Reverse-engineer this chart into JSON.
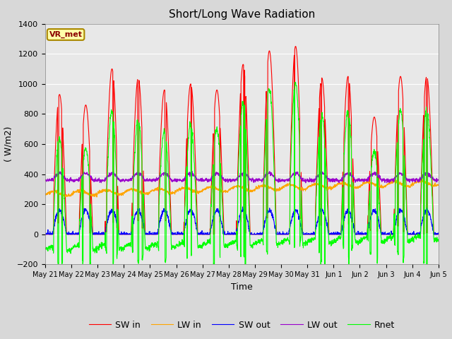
{
  "title": "Short/Long Wave Radiation",
  "ylabel": "( W/m2)",
  "xlabel": "Time",
  "ylim": [
    -200,
    1400
  ],
  "yticks": [
    -200,
    0,
    200,
    400,
    600,
    800,
    1000,
    1200,
    1400
  ],
  "x_tick_labels": [
    "May 21",
    "May 22",
    "May 23",
    "May 24",
    "May 25",
    "May 26",
    "May 27",
    "May 28",
    "May 29",
    "May 30",
    "May 31",
    "Jun 1",
    "Jun 2",
    "Jun 3",
    "Jun 4",
    "Jun 5"
  ],
  "legend_labels": [
    "SW in",
    "LW in",
    "SW out",
    "LW out",
    "Rnet"
  ],
  "legend_colors": [
    "red",
    "orange",
    "blue",
    "#9900cc",
    "lime"
  ],
  "station_label": "VR_met",
  "background_color": "#d8d8d8",
  "plot_bg_color": "#e8e8e8",
  "n_days": 15,
  "pts_per_day": 144
}
